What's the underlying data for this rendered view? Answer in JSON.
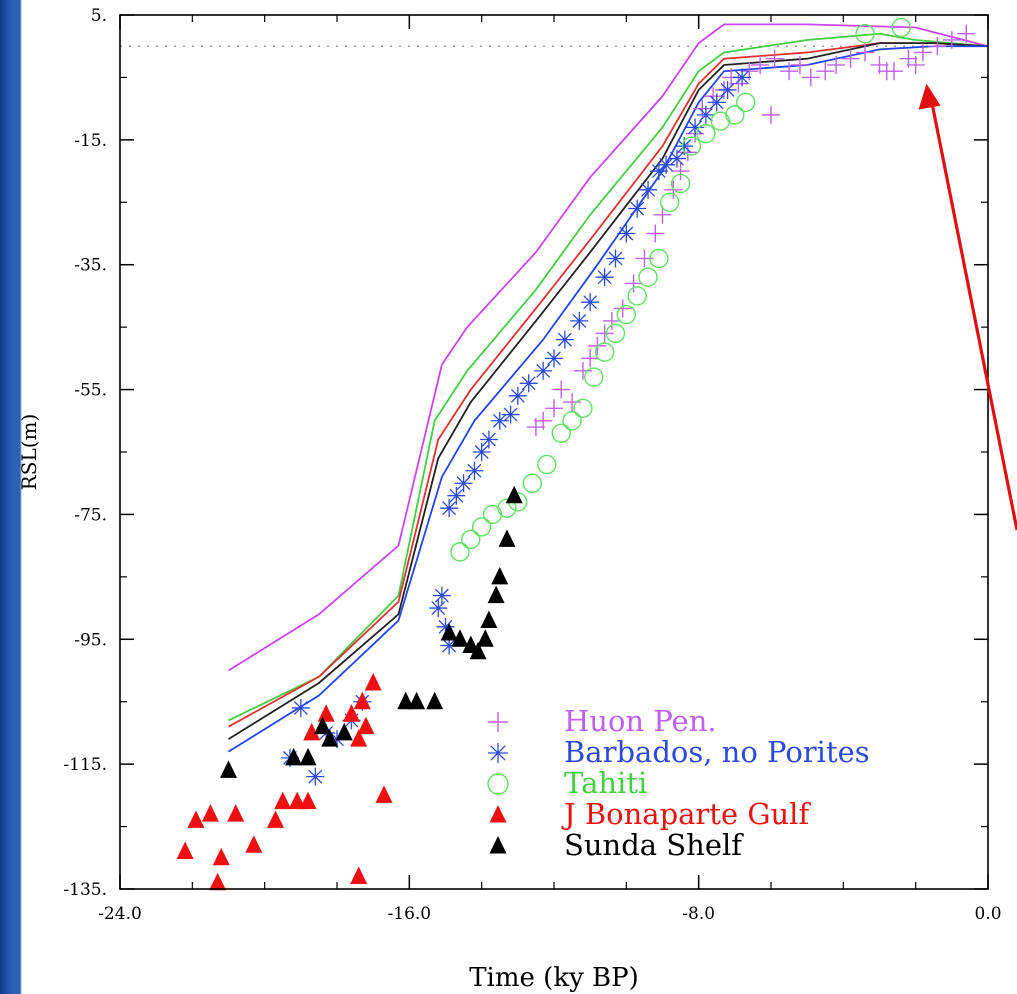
{
  "chart_data": {
    "type": "scatter",
    "title": "",
    "xlabel": "Time (ky BP)",
    "ylabel": "RSL(m)",
    "xlim": [
      -24,
      0
    ],
    "ylim": [
      -135,
      5
    ],
    "x_ticks": [
      -24,
      -16,
      -8,
      0
    ],
    "x_tick_labels": [
      "-24.0",
      "-16.0",
      "-8.0",
      "0.0"
    ],
    "y_ticks": [
      5,
      -15,
      -35,
      -55,
      -75,
      -95,
      -115,
      -135
    ],
    "y_tick_labels": [
      "5.",
      "-15.",
      "-35.",
      "-55.",
      "-75.",
      "-95.",
      "-115.",
      "-135."
    ],
    "grid": false,
    "legend_position": "bottom-right",
    "reference_line": {
      "y": 0,
      "style": "dotted"
    },
    "annotations": [
      {
        "type": "arrow",
        "color": "#e01010",
        "points_to": [
          -1.7,
          -6
        ]
      }
    ],
    "model_curves": [
      {
        "color": "#cc44ee",
        "x": [
          -21,
          -18.5,
          -16.3,
          -15.1,
          -14.4,
          -12.5,
          -11,
          -9,
          -8,
          -7.3,
          -5,
          -2,
          0
        ],
        "y": [
          -100,
          -91,
          -80,
          -51,
          -45,
          -33,
          -21,
          -8,
          0.5,
          3.5,
          3.5,
          3,
          0
        ]
      },
      {
        "color": "#44cc44",
        "x": [
          -21,
          -18.5,
          -16.3,
          -15.3,
          -14.4,
          -12.5,
          -11,
          -9,
          -8,
          -7.3,
          -5,
          -3,
          -2,
          0
        ],
        "y": [
          -108,
          -101,
          -88,
          -60,
          -52,
          -39,
          -27,
          -13,
          -4,
          -1,
          1,
          2,
          1,
          0
        ]
      },
      {
        "color": "#e03030",
        "x": [
          -21,
          -18.5,
          -16.3,
          -15.2,
          -14.3,
          -12.5,
          -11,
          -9,
          -8,
          -7.3,
          -5,
          -3,
          -1.5,
          0
        ],
        "y": [
          -109,
          -101,
          -89,
          -63,
          -55,
          -42,
          -31,
          -16,
          -6,
          -2,
          -1,
          0.5,
          0.5,
          0
        ]
      },
      {
        "color": "#222222",
        "x": [
          -21,
          -18.5,
          -16.3,
          -15.2,
          -14.3,
          -12.5,
          -11,
          -9,
          -8,
          -7.3,
          -5,
          -3,
          -1.5,
          0
        ],
        "y": [
          -111,
          -102,
          -91,
          -66,
          -57,
          -44,
          -33,
          -18,
          -7,
          -3,
          -2,
          0.5,
          0.5,
          0
        ]
      },
      {
        "color": "#2244ee",
        "x": [
          -21,
          -18.5,
          -16.3,
          -15.1,
          -14.2,
          -12.3,
          -10.8,
          -9,
          -8,
          -7.3,
          -5,
          -3,
          -1.5,
          0
        ],
        "y": [
          -113,
          -104,
          -92,
          -69,
          -60,
          -47,
          -35,
          -20,
          -9,
          -4,
          -3,
          -0.5,
          0,
          0
        ]
      }
    ],
    "series": [
      {
        "name": "Huon Pen.",
        "marker": "plus",
        "color": "#c060ee",
        "x": [
          -12.5,
          -12.3,
          -12.0,
          -11.8,
          -11.5,
          -11.2,
          -11.0,
          -10.8,
          -10.6,
          -10.4,
          -10.1,
          -9.8,
          -9.5,
          -9.2,
          -9.0,
          -8.7,
          -8.5,
          -8.3,
          -8.1,
          -7.9,
          -7.6,
          -7.3,
          -7.1,
          -6.9,
          -6.6,
          -6.3,
          -5.9,
          -5.5,
          -5.2,
          -4.9,
          -4.5,
          -4.2,
          -3.8,
          -3.4,
          -3.0,
          -2.6,
          -2.2,
          -1.8,
          -1.4,
          -1.0,
          -0.6,
          -2.0,
          -2.8,
          -6.0
        ],
        "y": [
          -61,
          -60,
          -58,
          -55,
          -57,
          -52,
          -50,
          -48,
          -46,
          -44,
          -42,
          -38,
          -34,
          -30,
          -27,
          -23,
          -20,
          -17,
          -14,
          -10,
          -8,
          -7,
          -5,
          -6,
          -4,
          -3,
          -2,
          -4,
          -3,
          -5,
          -4,
          -3,
          -2,
          -1,
          -3,
          -4,
          -2,
          -1,
          0,
          1,
          2,
          -3,
          -4,
          -11
        ]
      },
      {
        "name": "Barbados, no Porites",
        "marker": "asterisk",
        "color": "#2a4ae0",
        "x": [
          -19.3,
          -18.6,
          -18.0,
          -17.6,
          -18.3,
          -19.0,
          -17.3,
          -14.9,
          -15.0,
          -15.2,
          -15.1,
          -14.9,
          -14.7,
          -14.5,
          -14.2,
          -14.0,
          -13.8,
          -13.5,
          -13.2,
          -13.0,
          -12.7,
          -12.3,
          -12.0,
          -11.7,
          -11.3,
          -11.0,
          -10.6,
          -10.3,
          -10.0,
          -9.7,
          -9.4,
          -9.1,
          -8.9,
          -8.6,
          -8.4,
          -8.1,
          -7.8,
          -7.5,
          -7.2,
          -6.8
        ],
        "y": [
          -114,
          -117,
          -111,
          -108,
          -110,
          -106,
          -105,
          -96,
          -93,
          -90,
          -88,
          -74,
          -72,
          -70,
          -68,
          -65,
          -63,
          -60,
          -59,
          -56,
          -54,
          -52,
          -50,
          -47,
          -44,
          -41,
          -37,
          -34,
          -30,
          -26,
          -23,
          -20,
          -19,
          -18,
          -16,
          -13,
          -11,
          -9,
          -7,
          -5
        ]
      },
      {
        "name": "Tahiti",
        "marker": "circle",
        "color": "#60e060",
        "x": [
          -14.6,
          -14.3,
          -14.0,
          -13.7,
          -13.3,
          -13.0,
          -12.6,
          -12.2,
          -11.8,
          -11.5,
          -11.2,
          -10.9,
          -10.6,
          -10.3,
          -10.0,
          -9.7,
          -9.4,
          -9.1,
          -8.8,
          -8.5,
          -8.2,
          -7.8,
          -7.4,
          -7.0,
          -6.7,
          -3.4,
          -2.4
        ],
        "y": [
          -81,
          -79,
          -77,
          -75,
          -74,
          -73,
          -70,
          -67,
          -62,
          -60,
          -58,
          -53,
          -49,
          -46,
          -43,
          -40,
          -37,
          -34,
          -25,
          -22,
          -16,
          -14,
          -12,
          -11,
          -9,
          2,
          3
        ]
      },
      {
        "name": "J Bonaparte Gulf",
        "marker": "triangle",
        "color": "#ee1010",
        "x": [
          -22.2,
          -21.9,
          -21.5,
          -20.8,
          -20.3,
          -19.7,
          -19.5,
          -19.1,
          -18.8,
          -18.7,
          -18.3,
          -17.6,
          -17.4,
          -17.3,
          -17.2,
          -17.0,
          -16.7,
          -21.2,
          -21.3,
          -17.4
        ],
        "y": [
          -129,
          -124,
          -123,
          -123,
          -128,
          -124,
          -121,
          -121,
          -121,
          -110,
          -107,
          -107,
          -111,
          -105,
          -109,
          -102,
          -120,
          -130,
          -134,
          -133
        ]
      },
      {
        "name": "Sunda Shelf",
        "marker": "triangle",
        "color": "#000000",
        "x": [
          -21.0,
          -19.2,
          -18.8,
          -18.4,
          -18.2,
          -17.8,
          -16.1,
          -15.8,
          -15.3,
          -14.9,
          -14.6,
          -14.3,
          -14.1,
          -13.9,
          -13.8,
          -13.6,
          -13.5,
          -13.3,
          -13.1
        ],
        "y": [
          -116,
          -114,
          -114,
          -109,
          -111,
          -110,
          -105,
          -105,
          -105,
          -94,
          -95,
          -96,
          -97,
          -95,
          -92,
          -88,
          -85,
          -79,
          -72
        ]
      }
    ]
  }
}
